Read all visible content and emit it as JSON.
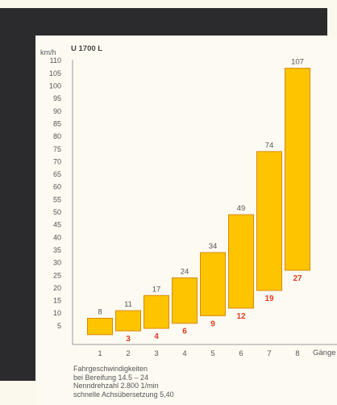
{
  "chart_data": {
    "type": "bar",
    "subtype": "floating-range",
    "title": "U 1700 L",
    "ylabel": "km/h",
    "xlabel": "Gänge",
    "ylim": [
      0,
      110
    ],
    "yticks": [
      5,
      10,
      15,
      20,
      25,
      30,
      35,
      40,
      45,
      50,
      55,
      60,
      65,
      70,
      75,
      80,
      85,
      90,
      95,
      100,
      105,
      110
    ],
    "categories": [
      "1",
      "2",
      "3",
      "4",
      "5",
      "6",
      "7",
      "8"
    ],
    "series": [
      {
        "name": "",
        "values_low": [
          1.5,
          3,
          4,
          6,
          9,
          12,
          19,
          27
        ],
        "values_high": [
          8,
          11,
          17,
          24,
          34,
          49,
          74,
          107
        ]
      }
    ],
    "low_labels": [
      "",
      "3",
      "4",
      "6",
      "9",
      "12",
      "19",
      "27"
    ],
    "high_labels": [
      "8",
      "11",
      "17",
      "24",
      "34",
      "49",
      "74",
      "107"
    ],
    "bar_color": "#ffc400",
    "bar_edge": "#d88a00",
    "low_label_color": "#e23a1e",
    "grid": false
  },
  "notes": {
    "line1": "Fahrgeschwindigkeiten",
    "line2": "bei Bereifung 14.5 – 24",
    "line3": "Nenndrehzahl 2.800 1/min",
    "line4": "schnelle Achsübersetzung 5,40"
  }
}
